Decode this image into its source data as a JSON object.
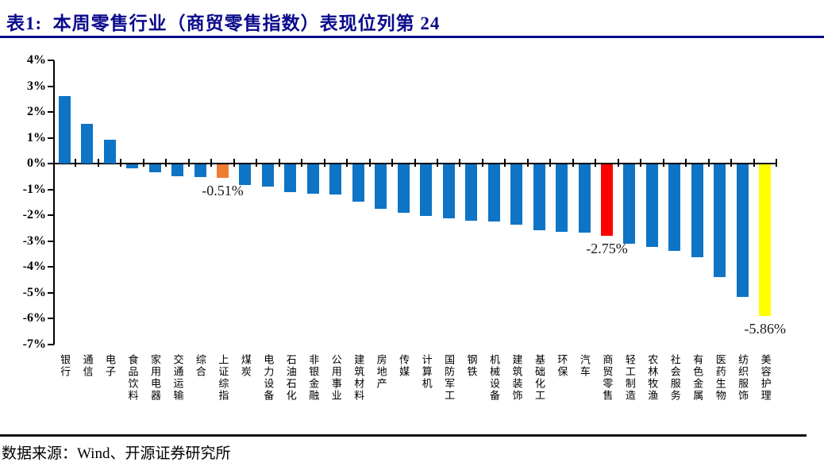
{
  "header": {
    "title": "表1:  本周零售行业（商贸零售指数）表现位列第 24"
  },
  "footer": {
    "source": "数据来源：Wind、开源证券研究所"
  },
  "colors": {
    "title_navy": "#0A0A8C",
    "bar_blue": "#0D74C6",
    "bar_orange": "#ED7D31",
    "bar_red": "#FF0000",
    "bar_yellow": "#FFFF00",
    "axis_black": "#000000"
  },
  "chart_data": {
    "type": "bar",
    "title": "本周零售行业（商贸零售指数）表现位列第 24",
    "xlabel": "",
    "ylabel": "",
    "unit": "%",
    "ylim": [
      -7,
      4
    ],
    "ytick_step": 1,
    "grid": false,
    "legend_position": "none",
    "categories": [
      "银行",
      "通信",
      "电子",
      "食品饮料",
      "家用电器",
      "交通运输",
      "综合",
      "上证综指",
      "煤炭",
      "电力设备",
      "石油石化",
      "非银金融",
      "公用事业",
      "建筑材料",
      "房地产",
      "传媒",
      "计算机",
      "国防军工",
      "钢铁",
      "机械设备",
      "建筑装饰",
      "基础化工",
      "环保",
      "汽车",
      "商贸零售",
      "轻工制造",
      "农林牧渔",
      "社会服务",
      "有色金属",
      "医药生物",
      "纺织服饰",
      "美容护理"
    ],
    "values": [
      2.61,
      1.55,
      0.92,
      -0.16,
      -0.31,
      -0.46,
      -0.5,
      -0.51,
      -0.78,
      -0.84,
      -1.06,
      -1.13,
      -1.16,
      -1.45,
      -1.71,
      -1.86,
      -2.0,
      -2.07,
      -2.18,
      -2.22,
      -2.33,
      -2.55,
      -2.6,
      -2.64,
      -2.75,
      -3.07,
      -3.2,
      -3.34,
      -3.6,
      -4.35,
      -5.12,
      -5.86
    ],
    "default_bar_color": "#0D74C6",
    "highlights": [
      {
        "index": 7,
        "category": "上证综指",
        "color": "#ED7D31",
        "label": "-0.51%"
      },
      {
        "index": 24,
        "category": "商贸零售",
        "color": "#FF0000",
        "label": "-2.75%"
      },
      {
        "index": 31,
        "category": "美容护理",
        "color": "#FFFF00",
        "label": "-5.86%"
      }
    ]
  }
}
